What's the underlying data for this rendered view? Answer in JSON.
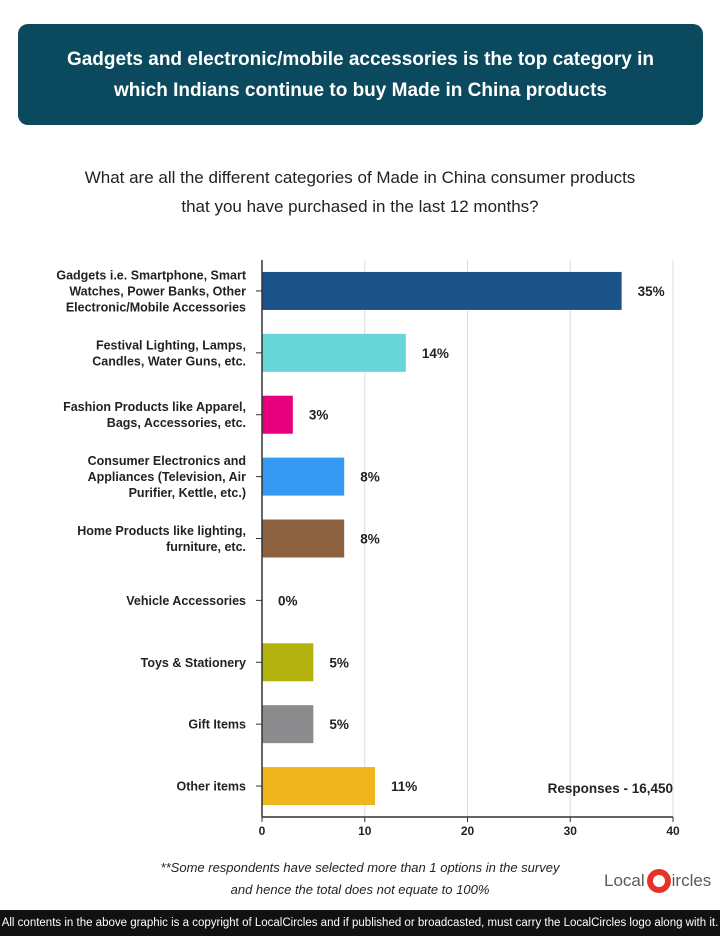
{
  "header": {
    "title_line1": "Gadgets and electronic/mobile accessories is the top category in",
    "title_line2": "which Indians continue to buy Made in China products"
  },
  "question": {
    "line1": "What are all the different categories of Made in China consumer products",
    "line2": "that you have purchased in the last 12 months?"
  },
  "chart_data": {
    "type": "bar",
    "orientation": "horizontal",
    "categories": [
      [
        "Gadgets i.e. Smartphone, Smart",
        "Watches, Power Banks, Other",
        "Electronic/Mobile Accessories"
      ],
      [
        "Festival Lighting, Lamps,",
        "Candles, Water Guns, etc."
      ],
      [
        "Fashion Products like Apparel,",
        "Bags, Accessories, etc."
      ],
      [
        "Consumer Electronics and",
        "Appliances (Television, Air",
        "Purifier, Kettle, etc.)"
      ],
      [
        "Home Products like lighting,",
        "furniture, etc."
      ],
      [
        "Vehicle Accessories"
      ],
      [
        "Toys & Stationery"
      ],
      [
        "Gift Items"
      ],
      [
        "Other items"
      ]
    ],
    "values": [
      35,
      14,
      3,
      8,
      8,
      0,
      5,
      5,
      11
    ],
    "value_labels": [
      "35%",
      "14%",
      "3%",
      "8%",
      "8%",
      "0%",
      "5%",
      "5%",
      "11%"
    ],
    "colors": [
      "#1b5287",
      "#68d5d8",
      "#e6007e",
      "#3399f3",
      "#8c6240",
      "#cccccc",
      "#b3b30f",
      "#8c8c8f",
      "#f0b41c"
    ],
    "xlim": [
      0,
      40
    ],
    "xticks": [
      0,
      10,
      20,
      30,
      40
    ],
    "tick_labels": [
      "0",
      "10",
      "20",
      "30",
      "40"
    ],
    "grid": true,
    "annotation": "Responses - 16,450"
  },
  "footnote": {
    "line1": "**Some respondents have selected more than 1 options in the survey",
    "line2": "and hence the total does not equate to 100%"
  },
  "logo": {
    "text_left": "Local",
    "text_right": "ircles",
    "badge_color": "#e5332a"
  },
  "copyright": "All contents in the above graphic is a copyright of LocalCircles and if published or broadcasted, must carry the LocalCircles logo along with it."
}
